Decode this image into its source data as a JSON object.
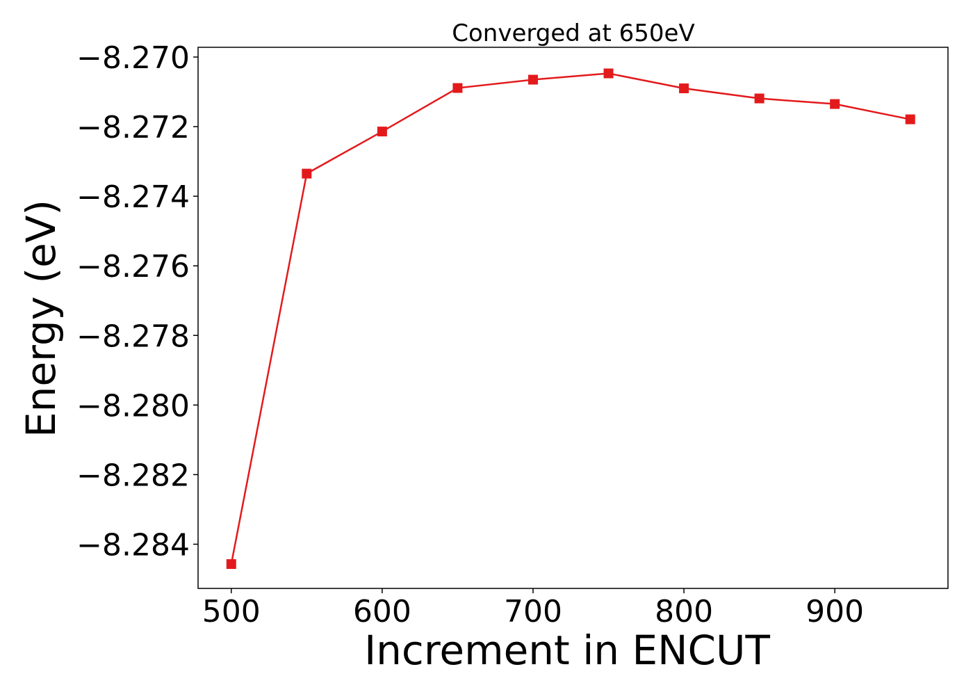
{
  "chart_data": {
    "type": "line",
    "title": "Converged at 650eV",
    "xlabel": "Increment in ENCUT",
    "ylabel": "Energy (eV)",
    "xlim": [
      478,
      975
    ],
    "ylim": [
      -8.28527,
      -8.26972
    ],
    "x_ticks": [
      500,
      600,
      700,
      800,
      900
    ],
    "x_tick_labels": [
      "500",
      "600",
      "700",
      "800",
      "900"
    ],
    "y_ticks": [
      -8.27,
      -8.272,
      -8.274,
      -8.276,
      -8.278,
      -8.28,
      -8.282,
      -8.284
    ],
    "y_tick_labels": [
      "−8.270",
      "−8.272",
      "−8.274",
      "−8.276",
      "−8.278",
      "−8.280",
      "−8.282",
      "−8.284"
    ],
    "grid": false,
    "series": [
      {
        "color": "#e31a1c",
        "marker": "square",
        "x": [
          500,
          550,
          600,
          650,
          700,
          750,
          800,
          850,
          900,
          950
        ],
        "y": [
          -8.28457,
          -8.27335,
          -8.27214,
          -8.27089,
          -8.27065,
          -8.27047,
          -8.2709,
          -8.27119,
          -8.27135,
          -8.27179
        ]
      }
    ]
  }
}
